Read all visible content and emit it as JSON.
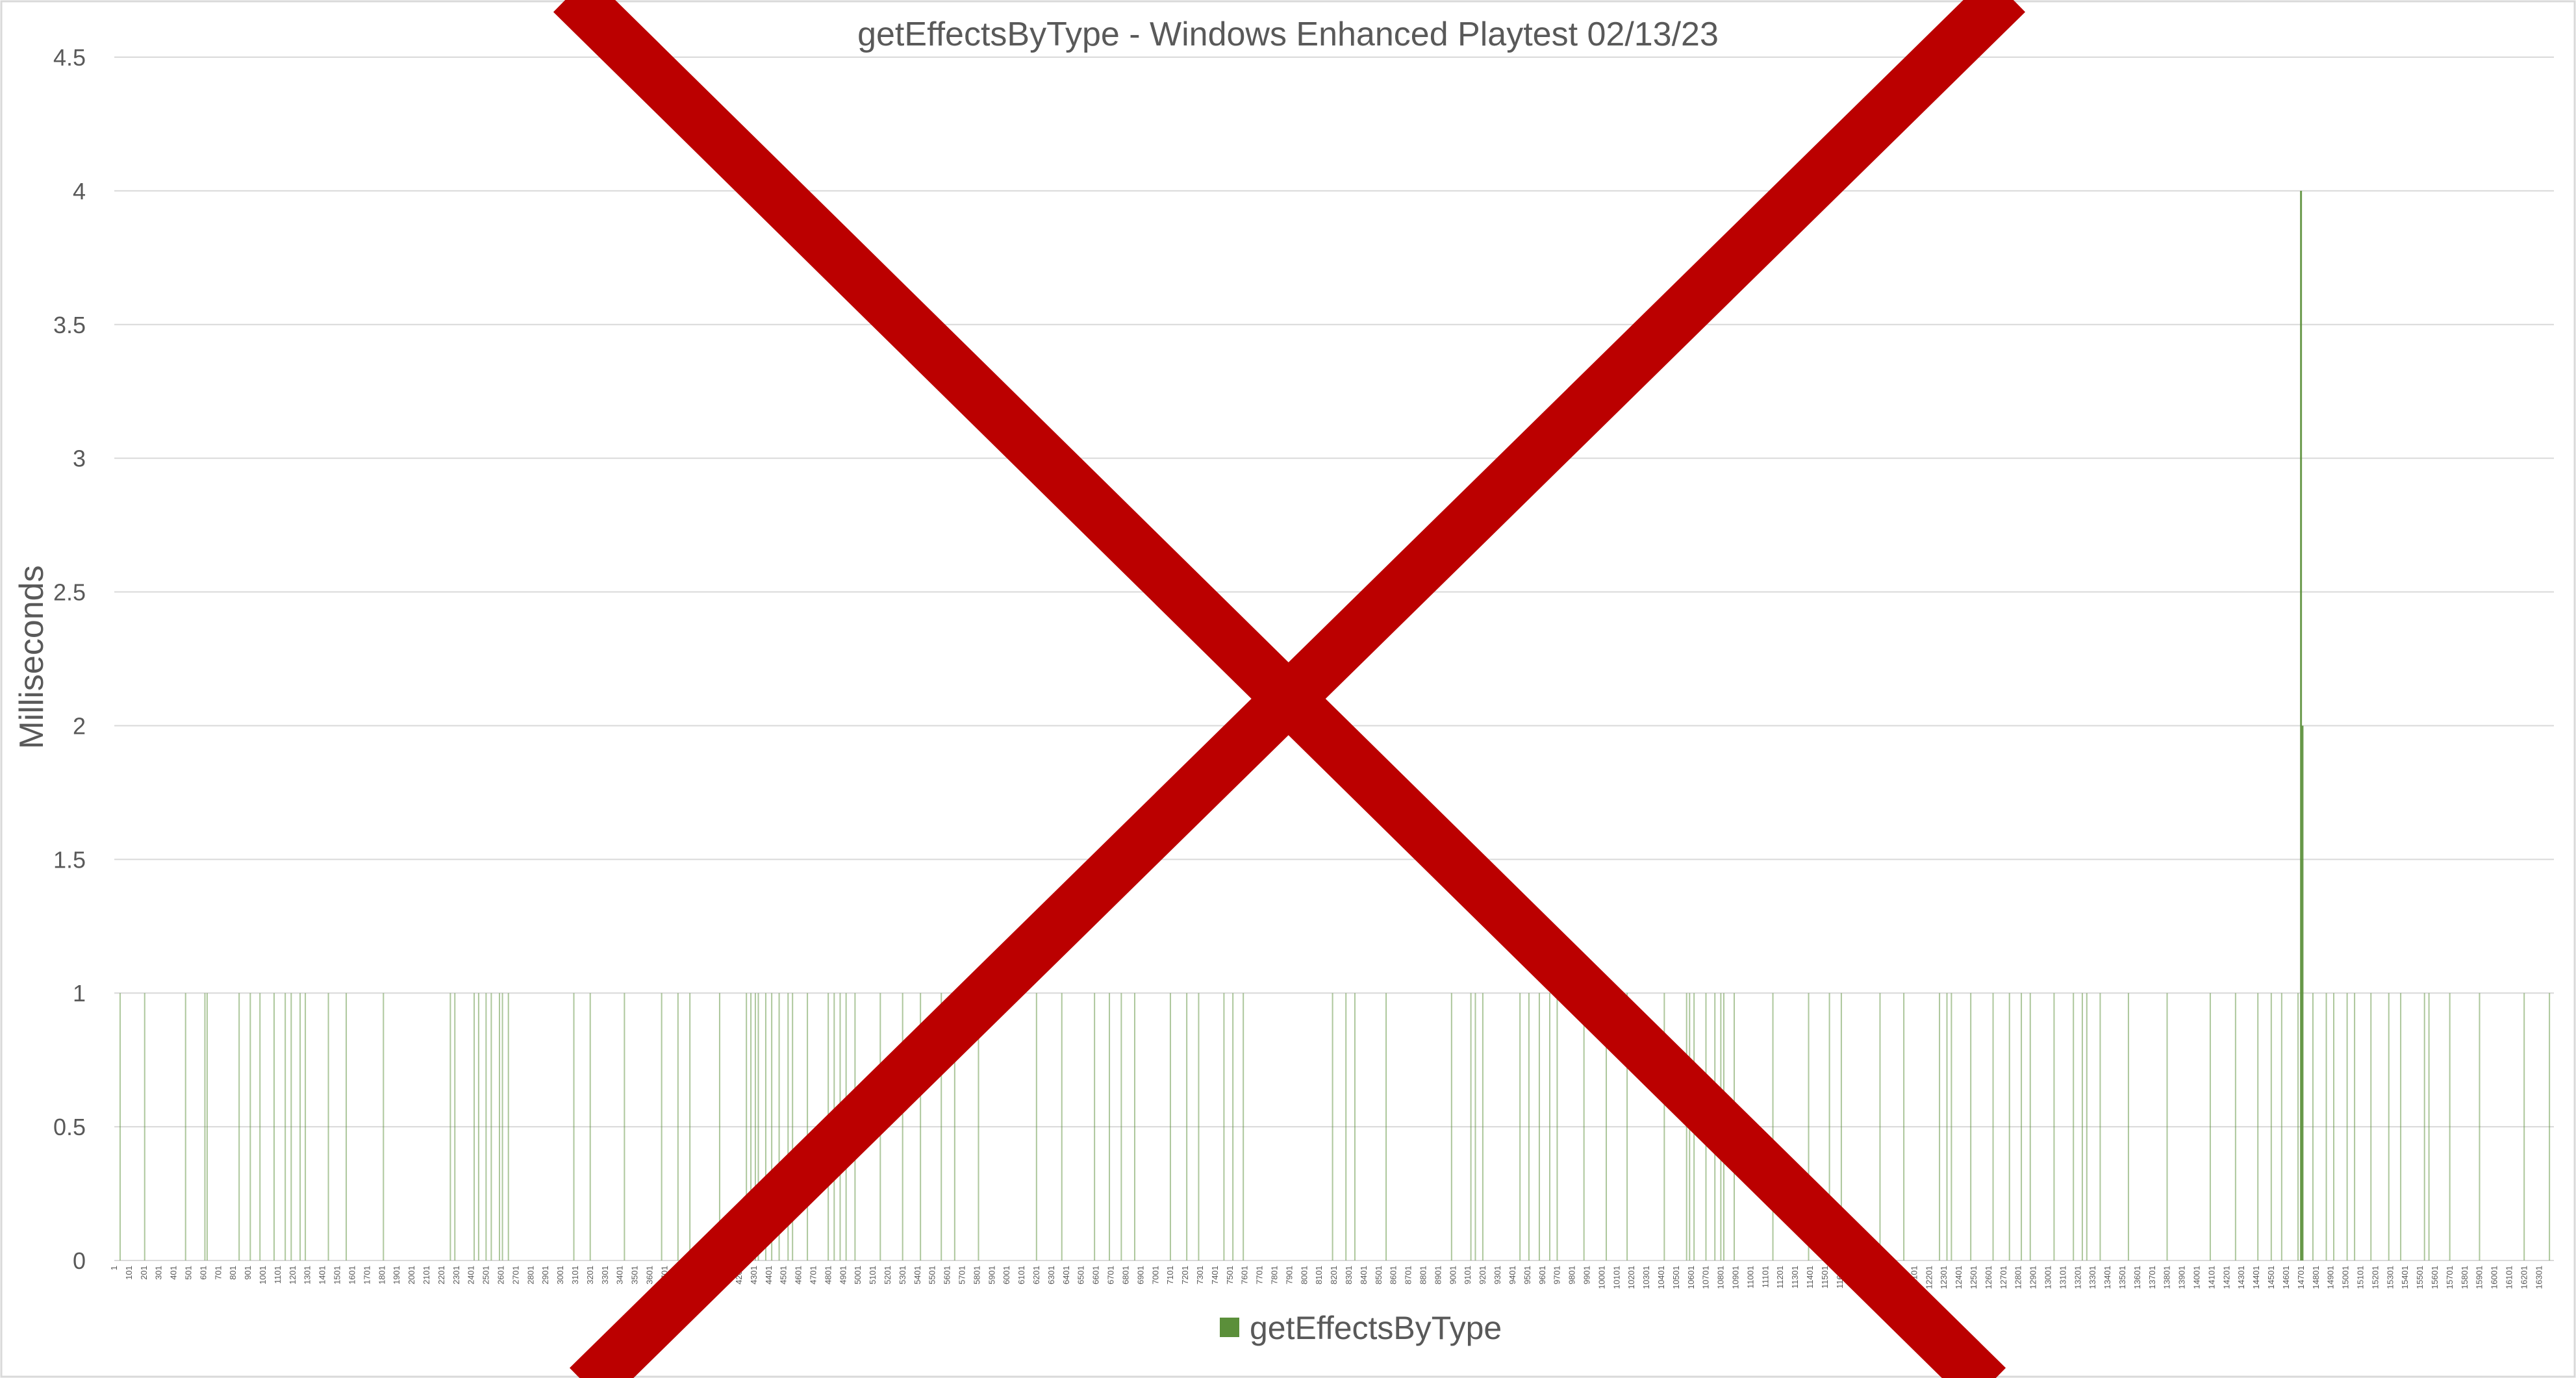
{
  "chart_data": {
    "type": "bar",
    "title": "getEffectsByType - Windows Enhanced Playtest 02/13/23",
    "xlabel": "",
    "ylabel": "Milliseconds",
    "ylim": [
      0,
      4.5
    ],
    "yticks": [
      "0",
      "0.5",
      "1",
      "1.5",
      "2",
      "2.5",
      "3",
      "3.5",
      "4",
      "4.5"
    ],
    "x_range": [
      1,
      16400
    ],
    "xticks": [
      "1",
      "101",
      "201",
      "301",
      "401",
      "501",
      "601",
      "701",
      "801",
      "901",
      "1001",
      "1101",
      "1201",
      "1301",
      "1401",
      "1501",
      "1601",
      "1701",
      "1801",
      "1901",
      "2001",
      "2101",
      "2201",
      "2301",
      "2401",
      "2501",
      "2601",
      "2701",
      "2801",
      "2901",
      "3001",
      "3101",
      "3201",
      "3301",
      "3401",
      "3501",
      "3601",
      "3701",
      "3801",
      "3901",
      "4001",
      "4101",
      "4201",
      "4301",
      "4401",
      "4501",
      "4601",
      "4701",
      "4801",
      "4901",
      "5001",
      "5101",
      "5201",
      "5301",
      "5401",
      "5501",
      "5601",
      "5701",
      "5801",
      "5901",
      "6001",
      "6101",
      "6201",
      "6301",
      "6401",
      "6501",
      "6601",
      "6701",
      "6801",
      "6901",
      "7001",
      "7101",
      "7201",
      "7301",
      "7401",
      "7501",
      "7601",
      "7701",
      "7801",
      "7901",
      "8001",
      "8101",
      "8201",
      "8301",
      "8401",
      "8501",
      "8601",
      "8701",
      "8801",
      "8901",
      "9001",
      "9101",
      "9201",
      "9301",
      "9401",
      "9501",
      "9601",
      "9701",
      "9801",
      "9901",
      "10001",
      "10101",
      "10201",
      "10301",
      "10401",
      "10501",
      "10601",
      "10701",
      "10801",
      "10901",
      "11001",
      "11101",
      "11201",
      "11301",
      "11401",
      "11501",
      "11601",
      "11701",
      "11801",
      "11901",
      "12001",
      "12101",
      "12201",
      "12301",
      "12401",
      "12501",
      "12601",
      "12701",
      "12801",
      "12901",
      "13001",
      "13101",
      "13201",
      "13301",
      "13401",
      "13501",
      "13601",
      "13701",
      "13801",
      "13901",
      "14001",
      "14101",
      "14201",
      "14301",
      "14401",
      "14501",
      "14601",
      "14701",
      "14801",
      "14901",
      "15001",
      "15101",
      "15201",
      "15301",
      "15401",
      "15501",
      "15601",
      "15701",
      "15801",
      "15901",
      "16001",
      "16101",
      "16201",
      "16301"
    ],
    "baseline": 0,
    "series": [
      {
        "name": "getEffectsByType",
        "color": "#5b8f3a",
        "points": [
          {
            "x": 40,
            "y": 1
          },
          {
            "x": 205,
            "y": 1
          },
          {
            "x": 480,
            "y": 1
          },
          {
            "x": 610,
            "y": 1
          },
          {
            "x": 625,
            "y": 1
          },
          {
            "x": 840,
            "y": 1
          },
          {
            "x": 915,
            "y": 1
          },
          {
            "x": 980,
            "y": 1
          },
          {
            "x": 1075,
            "y": 1
          },
          {
            "x": 1150,
            "y": 1
          },
          {
            "x": 1190,
            "y": 1
          },
          {
            "x": 1250,
            "y": 1
          },
          {
            "x": 1285,
            "y": 1
          },
          {
            "x": 1440,
            "y": 1
          },
          {
            "x": 1560,
            "y": 1
          },
          {
            "x": 1810,
            "y": 1
          },
          {
            "x": 2260,
            "y": 1
          },
          {
            "x": 2290,
            "y": 1
          },
          {
            "x": 2420,
            "y": 1
          },
          {
            "x": 2450,
            "y": 1
          },
          {
            "x": 2500,
            "y": 1
          },
          {
            "x": 2535,
            "y": 1
          },
          {
            "x": 2590,
            "y": 1
          },
          {
            "x": 2610,
            "y": 1
          },
          {
            "x": 2650,
            "y": 1
          },
          {
            "x": 3090,
            "y": 1
          },
          {
            "x": 3200,
            "y": 1
          },
          {
            "x": 3430,
            "y": 1
          },
          {
            "x": 3680,
            "y": 1
          },
          {
            "x": 3790,
            "y": 1
          },
          {
            "x": 3870,
            "y": 1
          },
          {
            "x": 4070,
            "y": 1
          },
          {
            "x": 4250,
            "y": 1
          },
          {
            "x": 4280,
            "y": 1
          },
          {
            "x": 4310,
            "y": 1
          },
          {
            "x": 4330,
            "y": 1
          },
          {
            "x": 4380,
            "y": 1
          },
          {
            "x": 4420,
            "y": 1
          },
          {
            "x": 4470,
            "y": 1
          },
          {
            "x": 4530,
            "y": 1
          },
          {
            "x": 4560,
            "y": 1
          },
          {
            "x": 4660,
            "y": 1
          },
          {
            "x": 4800,
            "y": 1
          },
          {
            "x": 4840,
            "y": 1
          },
          {
            "x": 4880,
            "y": 1
          },
          {
            "x": 4920,
            "y": 1
          },
          {
            "x": 4980,
            "y": 1
          },
          {
            "x": 5150,
            "y": 1
          },
          {
            "x": 5300,
            "y": 1
          },
          {
            "x": 5420,
            "y": 1
          },
          {
            "x": 5560,
            "y": 1
          },
          {
            "x": 5650,
            "y": 1
          },
          {
            "x": 5810,
            "y": 1
          },
          {
            "x": 6200,
            "y": 1
          },
          {
            "x": 6370,
            "y": 1
          },
          {
            "x": 6590,
            "y": 1
          },
          {
            "x": 6690,
            "y": 1
          },
          {
            "x": 6770,
            "y": 1
          },
          {
            "x": 6860,
            "y": 1
          },
          {
            "x": 7100,
            "y": 1
          },
          {
            "x": 7210,
            "y": 1
          },
          {
            "x": 7290,
            "y": 1
          },
          {
            "x": 7460,
            "y": 1
          },
          {
            "x": 7520,
            "y": 1
          },
          {
            "x": 7590,
            "y": 1
          },
          {
            "x": 8190,
            "y": 1
          },
          {
            "x": 8280,
            "y": 1
          },
          {
            "x": 8340,
            "y": 1
          },
          {
            "x": 8550,
            "y": 1
          },
          {
            "x": 8990,
            "y": 1
          },
          {
            "x": 9120,
            "y": 1
          },
          {
            "x": 9150,
            "y": 1
          },
          {
            "x": 9200,
            "y": 1
          },
          {
            "x": 9450,
            "y": 1
          },
          {
            "x": 9510,
            "y": 1
          },
          {
            "x": 9580,
            "y": 1
          },
          {
            "x": 9650,
            "y": 1
          },
          {
            "x": 9700,
            "y": 1
          },
          {
            "x": 9880,
            "y": 1
          },
          {
            "x": 10030,
            "y": 1
          },
          {
            "x": 10170,
            "y": 1
          },
          {
            "x": 10420,
            "y": 1
          },
          {
            "x": 10570,
            "y": 1
          },
          {
            "x": 10590,
            "y": 1
          },
          {
            "x": 10620,
            "y": 1
          },
          {
            "x": 10700,
            "y": 1
          },
          {
            "x": 10760,
            "y": 1
          },
          {
            "x": 10800,
            "y": 1
          },
          {
            "x": 10820,
            "y": 1
          },
          {
            "x": 10890,
            "y": 1
          },
          {
            "x": 11150,
            "y": 1
          },
          {
            "x": 11390,
            "y": 1
          },
          {
            "x": 11530,
            "y": 1
          },
          {
            "x": 11610,
            "y": 1
          },
          {
            "x": 11870,
            "y": 1
          },
          {
            "x": 12030,
            "y": 1
          },
          {
            "x": 12270,
            "y": 1
          },
          {
            "x": 12320,
            "y": 1
          },
          {
            "x": 12350,
            "y": 1
          },
          {
            "x": 12480,
            "y": 1
          },
          {
            "x": 12630,
            "y": 1
          },
          {
            "x": 12740,
            "y": 1
          },
          {
            "x": 12820,
            "y": 1
          },
          {
            "x": 12880,
            "y": 1
          },
          {
            "x": 13040,
            "y": 1
          },
          {
            "x": 13170,
            "y": 1
          },
          {
            "x": 13230,
            "y": 1
          },
          {
            "x": 13260,
            "y": 1
          },
          {
            "x": 13350,
            "y": 1
          },
          {
            "x": 13540,
            "y": 1
          },
          {
            "x": 13800,
            "y": 1
          },
          {
            "x": 14090,
            "y": 1
          },
          {
            "x": 14260,
            "y": 1
          },
          {
            "x": 14410,
            "y": 1
          },
          {
            "x": 14500,
            "y": 1
          },
          {
            "x": 14570,
            "y": 1
          },
          {
            "x": 14680,
            "y": 1
          },
          {
            "x": 14700,
            "y": 4
          },
          {
            "x": 14710,
            "y": 2
          },
          {
            "x": 14780,
            "y": 1
          },
          {
            "x": 14870,
            "y": 1
          },
          {
            "x": 14920,
            "y": 1
          },
          {
            "x": 15010,
            "y": 1
          },
          {
            "x": 15060,
            "y": 1
          },
          {
            "x": 15170,
            "y": 1
          },
          {
            "x": 15290,
            "y": 1
          },
          {
            "x": 15370,
            "y": 1
          },
          {
            "x": 15530,
            "y": 1
          },
          {
            "x": 15560,
            "y": 1
          },
          {
            "x": 15700,
            "y": 1
          },
          {
            "x": 15900,
            "y": 1
          },
          {
            "x": 16200,
            "y": 1
          },
          {
            "x": 16370,
            "y": 1
          }
        ]
      }
    ],
    "legend": {
      "position": "bottom",
      "label": "getEffectsByType"
    },
    "gridlines": true
  },
  "overlay": {
    "shape": "cross",
    "color": "#bb0000"
  }
}
